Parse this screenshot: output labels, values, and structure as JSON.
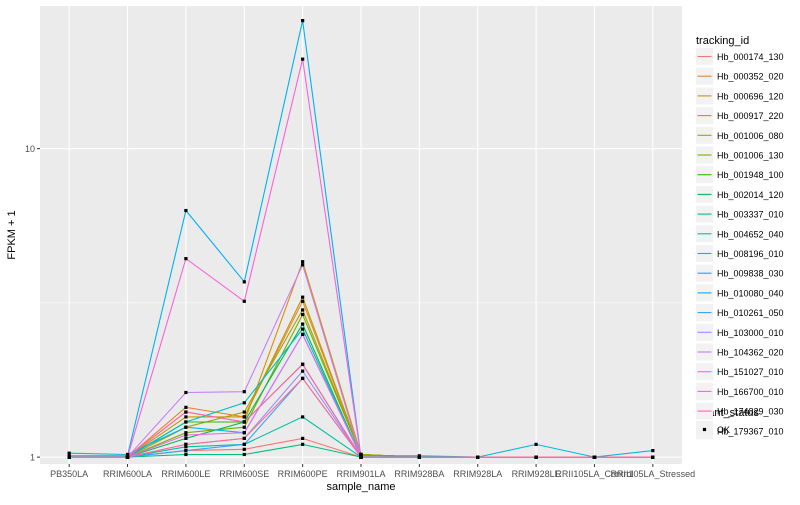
{
  "chart_data": {
    "type": "line",
    "y_scale": "log10",
    "xlabel": "sample_name",
    "ylabel": "FPKM + 1",
    "ylim": [
      0.95,
      29
    ],
    "y_ticks": [
      {
        "value": 1,
        "label": "1"
      },
      {
        "value": 10,
        "label": "10"
      }
    ],
    "categories": [
      "PB350LA",
      "RRIM600LA",
      "RRIM600LE",
      "RRIM600SE",
      "RRIM600PE",
      "RRIM901LA",
      "RRIM928BA",
      "RRIM928LA",
      "RRIM928LE",
      "RRII105LA_Control",
      "RRII105LA_Stressed"
    ],
    "series": [
      {
        "name": "Hb_000174_130",
        "color": "#F8766D",
        "values": [
          1.0,
          1.0,
          1.05,
          1.06,
          1.15,
          1.0,
          1.0,
          1.0,
          1.0,
          1.0,
          1.0
        ]
      },
      {
        "name": "Hb_000352_020",
        "color": "#EA8331",
        "values": [
          1.0,
          1.0,
          1.45,
          1.35,
          3.2,
          1.02,
          1.0,
          1.0,
          1.0,
          1.0,
          1.0
        ]
      },
      {
        "name": "Hb_000696_120",
        "color": "#D89000",
        "values": [
          1.0,
          1.0,
          1.4,
          1.3,
          4.3,
          1.02,
          1.0,
          1.0,
          1.0,
          1.0,
          1.0
        ]
      },
      {
        "name": "Hb_000917_220",
        "color": "#C09B00",
        "values": [
          1.0,
          1.0,
          1.35,
          1.35,
          3.3,
          1.02,
          1.0,
          1.0,
          1.0,
          1.0,
          1.0
        ]
      },
      {
        "name": "Hb_001006_080",
        "color": "#A3A500",
        "values": [
          1.0,
          1.0,
          1.25,
          1.4,
          3.0,
          1.02,
          1.0,
          1.0,
          1.0,
          1.0,
          1.0
        ]
      },
      {
        "name": "Hb_001006_130",
        "color": "#7CAE00",
        "values": [
          1.0,
          1.0,
          1.2,
          1.25,
          2.9,
          1.02,
          1.0,
          1.0,
          1.0,
          1.0,
          1.0
        ]
      },
      {
        "name": "Hb_001948_100",
        "color": "#39B600",
        "values": [
          1.0,
          1.0,
          1.3,
          1.3,
          2.0,
          1.0,
          1.0,
          1.0,
          1.0,
          1.0,
          1.0
        ]
      },
      {
        "name": "Hb_002014_120",
        "color": "#00BB4E",
        "values": [
          1.0,
          1.0,
          1.15,
          1.3,
          2.7,
          1.0,
          1.0,
          1.0,
          1.0,
          1.0,
          1.0
        ]
      },
      {
        "name": "Hb_003337_010",
        "color": "#00BF7D",
        "values": [
          1.0,
          1.0,
          1.02,
          1.02,
          1.1,
          1.0,
          1.0,
          1.0,
          1.0,
          1.0,
          1.0
        ]
      },
      {
        "name": "Hb_004652_040",
        "color": "#00C1A3",
        "values": [
          1.0,
          1.0,
          1.08,
          1.1,
          1.35,
          1.0,
          1.0,
          1.0,
          1.0,
          1.0,
          1.0
        ]
      },
      {
        "name": "Hb_008196_010",
        "color": "#00BFC4",
        "values": [
          1.0,
          1.0,
          1.3,
          1.5,
          2.6,
          1.0,
          1.0,
          1.0,
          1.0,
          1.0,
          1.0
        ]
      },
      {
        "name": "Hb_009838_030",
        "color": "#00BAE0",
        "values": [
          1.03,
          1.02,
          1.25,
          1.2,
          2.5,
          1.01,
          1.01,
          1.0,
          1.1,
          1.0,
          1.05
        ]
      },
      {
        "name": "Hb_010080_040",
        "color": "#00B0F6",
        "values": [
          1.01,
          1.01,
          6.3,
          3.7,
          26.0,
          1.0,
          1.0,
          1.0,
          1.0,
          1.0,
          1.0
        ]
      },
      {
        "name": "Hb_010261_050",
        "color": "#35A2FF",
        "values": [
          1.0,
          1.0,
          1.05,
          1.1,
          1.8,
          1.0,
          1.0,
          1.0,
          1.0,
          1.0,
          1.0
        ]
      },
      {
        "name": "Hb_103000_010",
        "color": "#9590FF",
        "values": [
          1.0,
          1.0,
          1.1,
          1.15,
          1.9,
          1.0,
          1.0,
          1.0,
          1.0,
          1.0,
          1.0
        ]
      },
      {
        "name": "Hb_104362_020",
        "color": "#C77CFF",
        "values": [
          1.0,
          1.0,
          1.62,
          1.63,
          4.2,
          1.0,
          1.0,
          1.0,
          1.0,
          1.0,
          1.0
        ]
      },
      {
        "name": "Hb_151027_010",
        "color": "#E76BF3",
        "values": [
          1.0,
          1.0,
          1.18,
          1.2,
          2.5,
          1.0,
          1.0,
          1.0,
          1.0,
          1.0,
          1.0
        ]
      },
      {
        "name": "Hb_166700_010",
        "color": "#FA62DB",
        "values": [
          1.0,
          1.0,
          4.4,
          3.2,
          19.5,
          1.0,
          1.0,
          1.0,
          1.0,
          1.0,
          1.0
        ]
      },
      {
        "name": "Hb_174829_030",
        "color": "#FF62BC",
        "values": [
          1.0,
          1.0,
          1.4,
          1.3,
          2.0,
          1.0,
          1.0,
          1.0,
          1.0,
          1.0,
          1.0
        ]
      },
      {
        "name": "Hb_179367_010",
        "color": "#FF6C91",
        "values": [
          1.0,
          1.0,
          1.1,
          1.15,
          1.8,
          1.0,
          1.0,
          1.0,
          1.0,
          1.0,
          1.0
        ]
      }
    ],
    "legend": {
      "title": "tracking_id",
      "placement": "right"
    },
    "point_legend": {
      "title": "quant_status",
      "entries": [
        "OK"
      ],
      "point_color": "#000000"
    },
    "grid": true,
    "panel_background": "#EBEBEB",
    "grid_color": "#FFFFFF"
  }
}
